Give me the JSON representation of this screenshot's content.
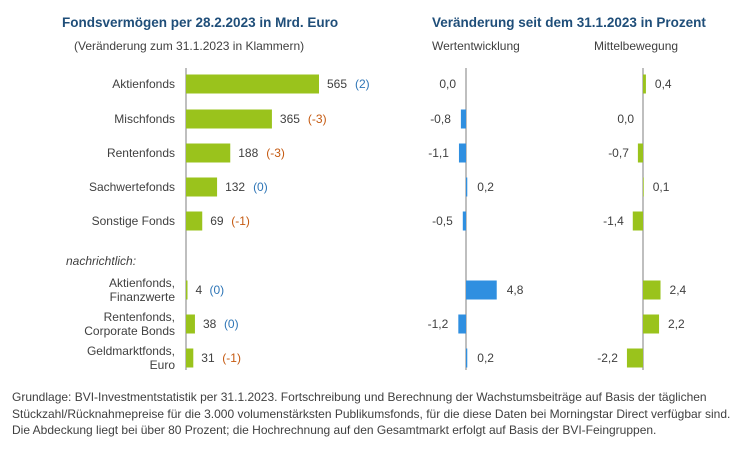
{
  "colors": {
    "green": "#9ac31c",
    "blue": "#2f8fe0",
    "axis": "#7f7f7f",
    "title": "#1f4e79",
    "pos_change": "#2e75b6",
    "neg_change": "#c55a11"
  },
  "left_title": "Fondsvermögen per 28.2.2023 in Mrd. Euro",
  "left_subtitle": "(Veränderung zum 31.1.2023 in Klammern)",
  "right_title": "Veränderung seit dem 31.1.2023 in Prozent",
  "note_label": "nachrichtlich:",
  "footnote": "Grundlage: BVI-Investmentstatistik per 31.1.2023. Fortschreibung und Berechnung der Wachstumsbeiträge auf Basis der täglichen Stückzahl/Rücknahmepreise für die 3.000 volumenstärksten Publikumsfonds, für die diese Daten bei Morningstar Direct verfügbar sind. Die Abdeckung liegt bei über 80 Prozent; die Hochrechnung auf den Gesamtmarkt erfolgt auf Basis der BVI-Feingruppen.",
  "chart_data": [
    {
      "type": "bar",
      "title": "Fondsvermögen per 28.2.2023 in Mrd. Euro",
      "subtitle": "(Veränderung zum 31.1.2023 in Klammern)",
      "categories": [
        [
          "Aktienfonds"
        ],
        [
          "Mischfonds"
        ],
        [
          "Rentenfonds"
        ],
        [
          "Sachwertefonds"
        ],
        [
          "Sonstige Fonds"
        ],
        [
          "Aktienfonds,",
          "Finanzwerte"
        ],
        [
          "Rentenfonds,",
          "Corporate Bonds"
        ],
        [
          "Geldmarktfonds,",
          "Euro"
        ]
      ],
      "values": [
        565,
        365,
        188,
        132,
        69,
        4,
        38,
        31
      ],
      "value_labels": [
        "565",
        "365",
        "188",
        "132",
        "69",
        "4",
        "38",
        "31"
      ],
      "changes": [
        "(2)",
        "(-3)",
        "(-3)",
        "(0)",
        "(-1)",
        "(0)",
        "(0)",
        "(-1)"
      ],
      "xlim": [
        0,
        565
      ]
    },
    {
      "type": "bar",
      "title": "Wertentwicklung",
      "values": [
        0.0,
        -0.8,
        -1.1,
        0.2,
        -0.5,
        4.8,
        -1.2,
        0.2
      ],
      "labels": [
        "0,0",
        "-0,8",
        "-1,1",
        "0,2",
        "-0,5",
        "4,8",
        "-1,2",
        "0,2"
      ]
    },
    {
      "type": "bar",
      "title": "Mittelbewegung",
      "values": [
        0.4,
        0.0,
        -0.7,
        0.1,
        -1.4,
        2.4,
        2.2,
        -2.2
      ],
      "labels": [
        "0,4",
        "0,0",
        "-0,7",
        "0,1",
        "-1,4",
        "2,4",
        "2,2",
        "-2,2"
      ]
    }
  ]
}
